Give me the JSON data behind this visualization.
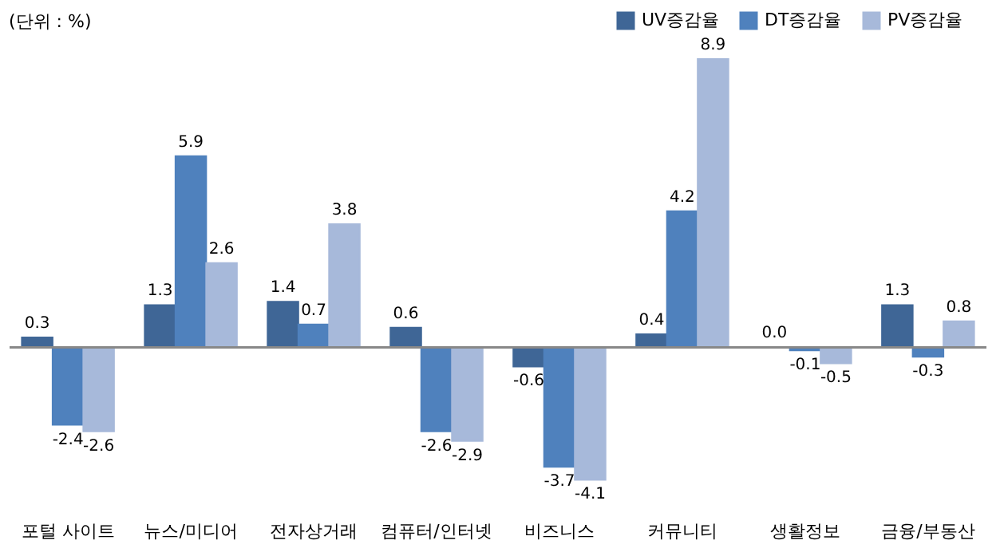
{
  "chart_data": {
    "type": "bar",
    "annotations": [
      "(단위 : %)"
    ],
    "categories": [
      "포털 사이트",
      "뉴스/미디어",
      "전자상거래",
      "컴퓨터/인터넷",
      "비즈니스",
      "커뮤니티",
      "생활정보",
      "금융/부동산"
    ],
    "series": [
      {
        "name": "UV증감율",
        "color": "#3f6696",
        "values": [
          0.3,
          1.3,
          1.4,
          0.6,
          -0.6,
          0.4,
          0,
          1.3
        ],
        "value_labels": [
          "0.3",
          "1.3",
          "1.4",
          "0.6",
          "-0.6",
          "0.4",
          "0.0",
          "1.3"
        ]
      },
      {
        "name": "DT증감율",
        "color": "#4f81bd",
        "values": [
          -2.4,
          5.9,
          0.7,
          -2.6,
          -3.7,
          4.2,
          -0.1,
          -0.3
        ],
        "value_labels": [
          "-2.4",
          "5.9",
          "0.7",
          "-2.6",
          "-3.7",
          "4.2",
          "-0.1",
          "-0.3"
        ]
      },
      {
        "name": "PV증감율",
        "color": "#a7b9da",
        "values": [
          -2.6,
          2.6,
          3.8,
          -2.9,
          -4.1,
          8.9,
          -0.5,
          0.8
        ],
        "value_labels": [
          "-2.6",
          "2.6",
          "3.8",
          "-2.9",
          "-4.1",
          "8.9",
          "-0.5",
          "0.8"
        ]
      }
    ],
    "legend": "top right",
    "grid": false
  }
}
